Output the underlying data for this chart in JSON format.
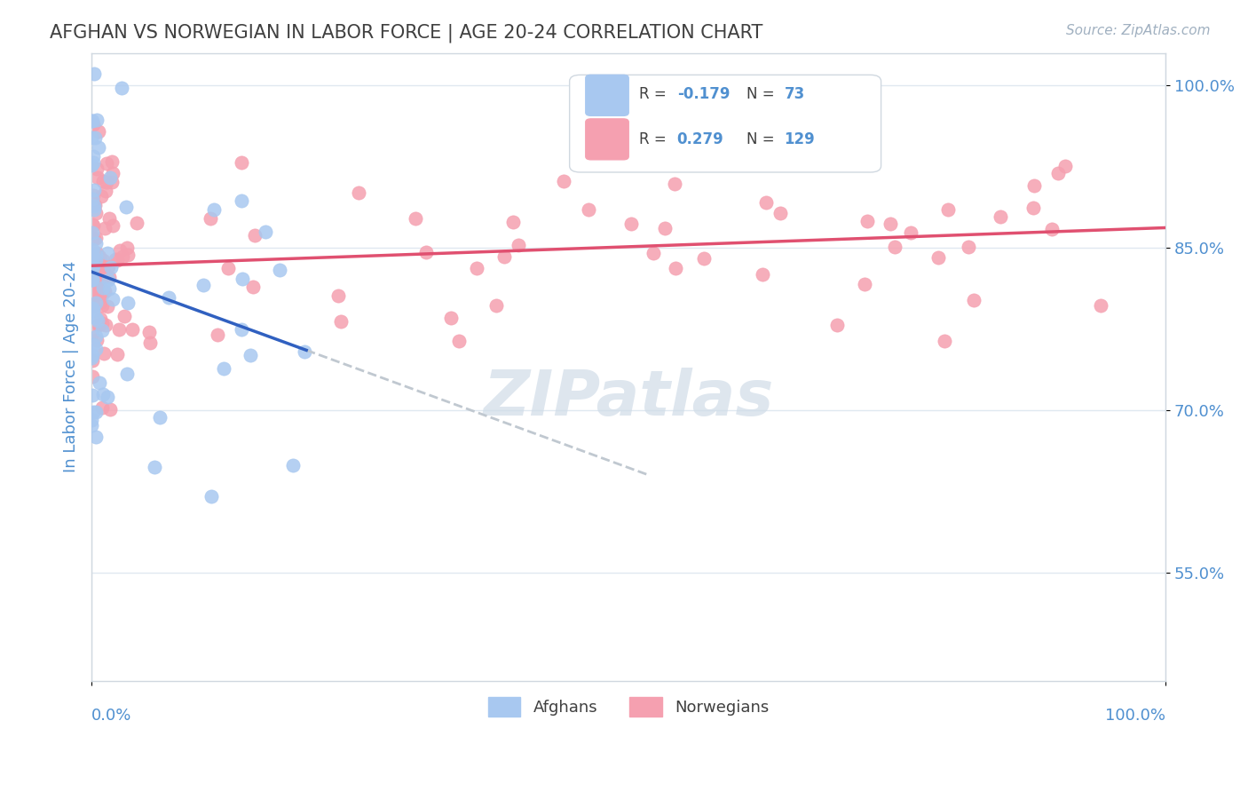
{
  "title": "AFGHAN VS NORWEGIAN IN LABOR FORCE | AGE 20-24 CORRELATION CHART",
  "source_text": "Source: ZipAtlas.com",
  "ylabel": "In Labor Force | Age 20-24",
  "xmin": 0.0,
  "xmax": 1.0,
  "ymin": 0.45,
  "ymax": 1.03,
  "yticks": [
    0.55,
    0.7,
    0.85,
    1.0
  ],
  "ytick_labels": [
    "55.0%",
    "70.0%",
    "85.0%",
    "100.0%"
  ],
  "legend_r_afghan": "-0.179",
  "legend_n_afghan": "73",
  "legend_r_norwegian": "0.279",
  "legend_n_norwegian": "129",
  "afghan_color": "#a8c8f0",
  "norwegian_color": "#f5a0b0",
  "afghan_line_color": "#3060c0",
  "norwegian_line_color": "#e05070",
  "trend_dashed_color": "#c0c8d0",
  "watermark_color": "#d0dce8",
  "background_color": "#ffffff",
  "title_color": "#404040",
  "axis_label_color": "#5090d0",
  "grid_color": "#e0e8f0"
}
